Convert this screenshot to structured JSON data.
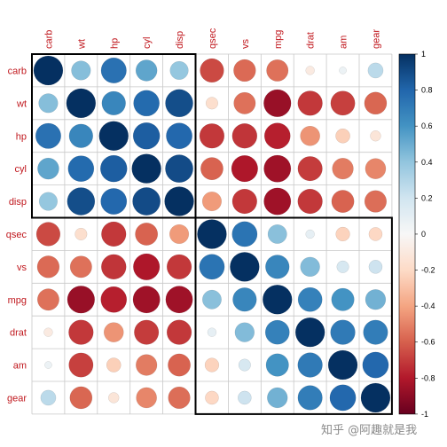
{
  "chart_data": {
    "type": "heatmap",
    "subtype": "correlation-circle-matrix",
    "variables": [
      "carb",
      "wt",
      "hp",
      "cyl",
      "disp",
      "qsec",
      "vs",
      "mpg",
      "drat",
      "am",
      "gear"
    ],
    "matrix": [
      [
        1.0,
        0.43,
        0.75,
        0.53,
        0.39,
        -0.66,
        -0.57,
        -0.55,
        -0.09,
        0.06,
        0.27
      ],
      [
        0.43,
        1.0,
        0.66,
        0.78,
        0.89,
        -0.17,
        -0.55,
        -0.87,
        -0.71,
        -0.69,
        -0.58
      ],
      [
        0.75,
        0.66,
        1.0,
        0.83,
        0.79,
        -0.71,
        -0.72,
        -0.78,
        -0.45,
        -0.24,
        -0.13
      ],
      [
        0.53,
        0.78,
        0.83,
        1.0,
        0.9,
        -0.59,
        -0.81,
        -0.85,
        -0.7,
        -0.52,
        -0.49
      ],
      [
        0.39,
        0.89,
        0.79,
        0.9,
        1.0,
        -0.43,
        -0.71,
        -0.85,
        -0.71,
        -0.59,
        -0.56
      ],
      [
        -0.66,
        -0.17,
        -0.71,
        -0.59,
        -0.43,
        1.0,
        0.74,
        0.42,
        0.09,
        -0.23,
        -0.21
      ],
      [
        -0.57,
        -0.55,
        -0.72,
        -0.81,
        -0.71,
        0.74,
        1.0,
        0.66,
        0.44,
        0.17,
        0.21
      ],
      [
        -0.55,
        -0.87,
        -0.78,
        -0.85,
        -0.85,
        0.42,
        0.66,
        1.0,
        0.68,
        0.6,
        0.48
      ],
      [
        -0.09,
        -0.71,
        -0.45,
        -0.7,
        -0.71,
        0.09,
        0.44,
        0.68,
        1.0,
        0.71,
        0.7
      ],
      [
        0.06,
        -0.69,
        -0.24,
        -0.52,
        -0.59,
        -0.23,
        0.17,
        0.6,
        0.71,
        1.0,
        0.79
      ],
      [
        0.27,
        -0.58,
        -0.13,
        -0.49,
        -0.56,
        -0.21,
        0.21,
        0.48,
        0.7,
        0.79,
        1.0
      ]
    ],
    "clusters": [
      [
        "carb",
        "wt",
        "hp",
        "cyl",
        "disp"
      ],
      [
        "qsec",
        "vs",
        "mpg",
        "drat",
        "am",
        "gear"
      ]
    ],
    "colorbar": {
      "range": [
        -1,
        1
      ],
      "ticks": [
        "1",
        "0.8",
        "0.6",
        "0.4",
        "0.2",
        "0",
        "-0.2",
        "-0.4",
        "-0.6",
        "-0.8",
        "-1"
      ],
      "placement": "right"
    },
    "colors": {
      "positive_strong": "#053061",
      "positive_mid": "#4393c3",
      "neutral": "#f7f7f7",
      "negative_mid": "#d6604d",
      "negative_strong": "#67001f",
      "label": "#c0171d",
      "grid": "#c8c8c8",
      "cluster_box": "#000000"
    },
    "grid": true
  },
  "watermark": "知乎 @阿趣就是我"
}
